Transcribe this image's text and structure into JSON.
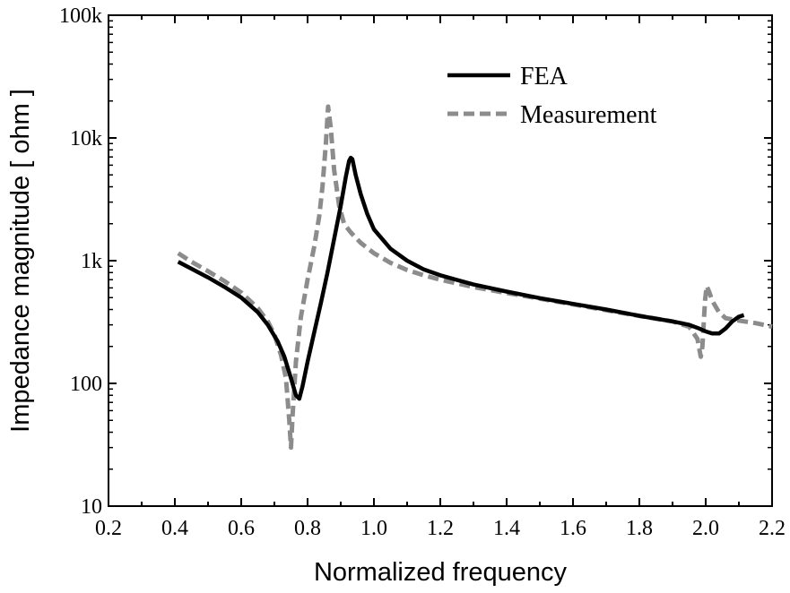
{
  "chart_data": {
    "type": "line",
    "title": "",
    "xlabel": "Normalized frequency",
    "ylabel": "Impedance magnitude [ ohm ]",
    "xlim": [
      0.2,
      2.2
    ],
    "ylim": [
      10,
      100000
    ],
    "yscale": "log",
    "x_ticks": [
      "0.2",
      "0.4",
      "0.6",
      "0.8",
      "1.0",
      "1.2",
      "1.4",
      "1.6",
      "1.8",
      "2.0",
      "2.2"
    ],
    "y_ticks": [
      "10",
      "100",
      "1k",
      "10k",
      "100k"
    ],
    "legend_position": "top-right",
    "grid": false,
    "series": [
      {
        "name": "FEA",
        "color": "#000000",
        "style": "solid",
        "points": [
          [
            0.41,
            980
          ],
          [
            0.45,
            860
          ],
          [
            0.5,
            730
          ],
          [
            0.55,
            610
          ],
          [
            0.6,
            500
          ],
          [
            0.65,
            380
          ],
          [
            0.68,
            300
          ],
          [
            0.71,
            220
          ],
          [
            0.73,
            165
          ],
          [
            0.75,
            110
          ],
          [
            0.765,
            80
          ],
          [
            0.775,
            75
          ],
          [
            0.785,
            95
          ],
          [
            0.8,
            150
          ],
          [
            0.82,
            260
          ],
          [
            0.84,
            450
          ],
          [
            0.86,
            800
          ],
          [
            0.88,
            1500
          ],
          [
            0.9,
            2800
          ],
          [
            0.915,
            4800
          ],
          [
            0.925,
            6500
          ],
          [
            0.93,
            6900
          ],
          [
            0.935,
            6700
          ],
          [
            0.945,
            5000
          ],
          [
            0.96,
            3500
          ],
          [
            0.98,
            2400
          ],
          [
            1.0,
            1800
          ],
          [
            1.05,
            1250
          ],
          [
            1.1,
            1000
          ],
          [
            1.15,
            850
          ],
          [
            1.2,
            760
          ],
          [
            1.3,
            640
          ],
          [
            1.4,
            560
          ],
          [
            1.5,
            495
          ],
          [
            1.6,
            445
          ],
          [
            1.7,
            400
          ],
          [
            1.8,
            355
          ],
          [
            1.9,
            320
          ],
          [
            1.95,
            300
          ],
          [
            1.98,
            280
          ],
          [
            2.0,
            265
          ],
          [
            2.02,
            255
          ],
          [
            2.04,
            255
          ],
          [
            2.06,
            280
          ],
          [
            2.08,
            320
          ],
          [
            2.1,
            350
          ],
          [
            2.115,
            360
          ]
        ]
      },
      {
        "name": "Measurement",
        "color": "#8c8c8c",
        "style": "dashed",
        "points": [
          [
            0.41,
            1150
          ],
          [
            0.45,
            980
          ],
          [
            0.5,
            820
          ],
          [
            0.55,
            680
          ],
          [
            0.6,
            550
          ],
          [
            0.65,
            410
          ],
          [
            0.68,
            320
          ],
          [
            0.7,
            250
          ],
          [
            0.72,
            170
          ],
          [
            0.735,
            110
          ],
          [
            0.745,
            50
          ],
          [
            0.75,
            30
          ],
          [
            0.755,
            55
          ],
          [
            0.765,
            150
          ],
          [
            0.78,
            350
          ],
          [
            0.8,
            700
          ],
          [
            0.82,
            1300
          ],
          [
            0.835,
            2300
          ],
          [
            0.845,
            4000
          ],
          [
            0.855,
            9000
          ],
          [
            0.862,
            18000
          ],
          [
            0.87,
            12000
          ],
          [
            0.88,
            5500
          ],
          [
            0.895,
            2800
          ],
          [
            0.91,
            2000
          ],
          [
            0.93,
            1700
          ],
          [
            0.96,
            1400
          ],
          [
            1.0,
            1150
          ],
          [
            1.05,
            960
          ],
          [
            1.1,
            840
          ],
          [
            1.15,
            760
          ],
          [
            1.2,
            700
          ],
          [
            1.3,
            610
          ],
          [
            1.4,
            545
          ],
          [
            1.5,
            490
          ],
          [
            1.6,
            440
          ],
          [
            1.7,
            395
          ],
          [
            1.8,
            355
          ],
          [
            1.9,
            320
          ],
          [
            1.95,
            290
          ],
          [
            1.975,
            230
          ],
          [
            1.985,
            165
          ],
          [
            1.99,
            200
          ],
          [
            1.998,
            480
          ],
          [
            2.003,
            620
          ],
          [
            2.01,
            560
          ],
          [
            2.02,
            470
          ],
          [
            2.04,
            380
          ],
          [
            2.06,
            340
          ],
          [
            2.1,
            325
          ],
          [
            2.15,
            310
          ],
          [
            2.2,
            290
          ]
        ]
      }
    ]
  }
}
